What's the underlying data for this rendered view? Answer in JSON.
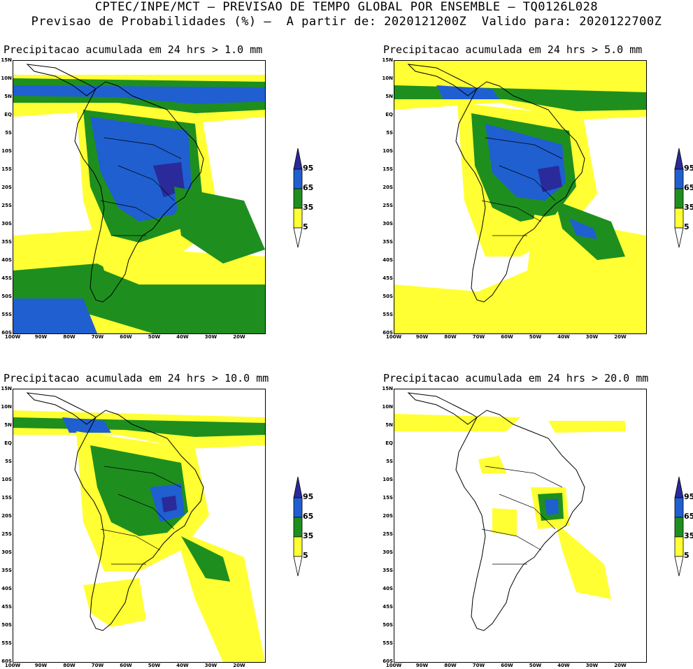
{
  "header": {
    "line1": "CPTEC/INPE/MCT — PREVISAO DE TEMPO GLOBAL POR ENSEMBLE — TQ0126L028",
    "line2": "Previsao de Probabilidades (%) —  A partir de: 2020121200Z  Valido para: 2020122700Z"
  },
  "panels": [
    {
      "title": "Precipitacao acumulada em 24 hrs > 1.0 mm"
    },
    {
      "title": "Precipitacao acumulada em 24 hrs > 5.0 mm"
    },
    {
      "title": "Precipitacao acumulada em 24 hrs > 10.0 mm"
    },
    {
      "title": "Precipitacao acumulada em 24 hrs > 20.0 mm"
    }
  ],
  "axes": {
    "lat_labels": [
      "15N",
      "10N",
      "5N",
      "EQ",
      "5S",
      "10S",
      "15S",
      "20S",
      "25S",
      "30S",
      "35S",
      "40S",
      "45S",
      "50S",
      "55S",
      "60S"
    ],
    "lon_labels": [
      "100W",
      "90W",
      "80W",
      "70W",
      "60W",
      "50W",
      "40W",
      "30W",
      "20W"
    ]
  },
  "colorbar": {
    "levels": [
      "95",
      "65",
      "35",
      "5"
    ],
    "colors": {
      "c95": "#2a2a9a",
      "c65": "#1f5fd0",
      "c35": "#1e8f1e",
      "c5": "#ffff33"
    }
  }
}
